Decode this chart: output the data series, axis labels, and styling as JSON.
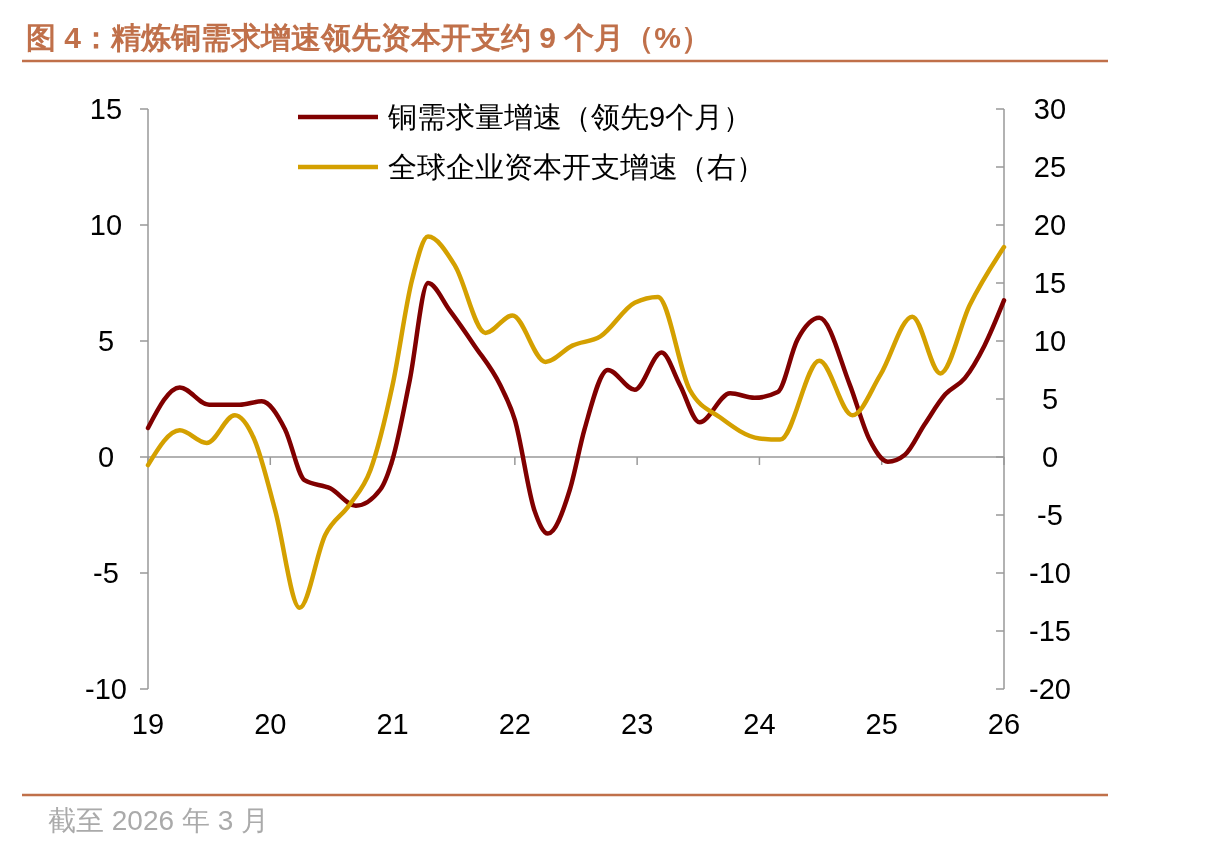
{
  "chart_data": {
    "type": "line",
    "title": "图 4：精炼铜需求增速领先资本开支约 9 个月（%）",
    "annotations": [
      "截至 2026 年 3 月"
    ],
    "xlim": [
      19,
      26
    ],
    "xticks": [
      19,
      20,
      21,
      22,
      23,
      24,
      25,
      26
    ],
    "ylim": [
      -10,
      15
    ],
    "yticks": [
      -10,
      -5,
      0,
      5,
      10,
      15
    ],
    "y2lim": [
      -20,
      30
    ],
    "y2ticks": [
      -20,
      -15,
      -10,
      -5,
      0,
      5,
      10,
      15,
      20,
      25,
      30
    ],
    "legend": "top",
    "marker": "none",
    "line_style": "solid",
    "series": [
      {
        "name": "铜需求量增速（领先9个月）",
        "color": "#800000",
        "x": [
          19,
          19.26,
          19.5,
          19.75,
          19.93,
          20.12,
          20.28,
          20.49,
          20.7,
          20.9,
          21,
          21.14,
          21.29,
          21.47,
          21.67,
          21.88,
          22,
          22.16,
          22.27,
          22.45,
          22.57,
          22.76,
          22.98,
          23.2,
          23.35,
          23.51,
          23.76,
          23.96,
          24.15,
          24.31,
          24.49,
          24.74,
          24.9,
          25.05,
          25.19,
          25.35,
          25.52,
          25.68,
          25.84,
          26
        ],
        "values": [
          1.25,
          3.0,
          2.25,
          2.25,
          2.4,
          1.2,
          -1.0,
          -1.35,
          -2.1,
          -1.4,
          -0.1,
          3.3,
          7.5,
          6.3,
          4.8,
          3.1,
          1.6,
          -2.3,
          -3.3,
          -1.4,
          1.2,
          3.75,
          2.9,
          4.5,
          3.1,
          1.5,
          2.75,
          2.55,
          2.8,
          5.05,
          6.0,
          3.1,
          0.75,
          -0.2,
          0.1,
          1.4,
          2.7,
          3.4,
          4.8,
          6.75
        ]
      },
      {
        "name": "全球企业资本开支增速（右）",
        "color": "#d4a000",
        "axis": "y2",
        "x": [
          19,
          19.26,
          19.48,
          19.71,
          19.87,
          20.04,
          20.24,
          20.45,
          20.65,
          20.82,
          21,
          21.16,
          21.29,
          21.51,
          21.76,
          21.98,
          22.25,
          22.47,
          22.7,
          22.98,
          23.17,
          23.43,
          23.68,
          24,
          24.17,
          24.49,
          24.76,
          24.99,
          25.25,
          25.48,
          25.72,
          26
        ],
        "values": [
          -0.7,
          2.3,
          1.2,
          3.6,
          1.5,
          -4.6,
          -13.0,
          -6.7,
          -4.1,
          -1.1,
          6.2,
          15.3,
          19.0,
          16.5,
          10.7,
          12.2,
          8.2,
          9.6,
          10.4,
          13.3,
          13.8,
          5.8,
          3.4,
          1.6,
          1.5,
          8.3,
          3.6,
          7.1,
          12.1,
          7.2,
          13.1,
          18.1
        ]
      }
    ]
  }
}
